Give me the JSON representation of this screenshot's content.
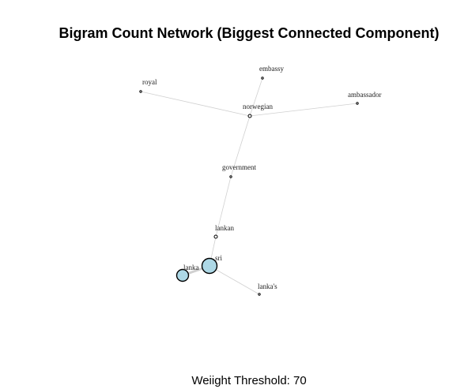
{
  "title": "Bigram Count Network (Biggest Connected Component)",
  "caption": "Weiight Threshold: 70",
  "style": {
    "edge_color": "#d0d0d0",
    "node_fill_large": "#add8e6",
    "node_fill_small": "#ffffff",
    "node_stroke": "#000000"
  },
  "nodes": [
    {
      "id": "embassy",
      "label": "embassy",
      "degree": 1
    },
    {
      "id": "royal",
      "label": "royal",
      "degree": 1
    },
    {
      "id": "ambassador",
      "label": "ambassador",
      "degree": 1
    },
    {
      "id": "norwegian",
      "label": "norwegian",
      "degree": 4
    },
    {
      "id": "government",
      "label": "government",
      "degree": 2
    },
    {
      "id": "lankan",
      "label": "lankan",
      "degree": 2
    },
    {
      "id": "sri",
      "label": "sri",
      "degree": 3
    },
    {
      "id": "lanka",
      "label": "lanka",
      "degree": 1
    },
    {
      "id": "lankas",
      "label": "lanka's",
      "degree": 1
    }
  ],
  "edges": [
    {
      "source": "royal",
      "target": "norwegian",
      "weight": 1
    },
    {
      "source": "embassy",
      "target": "norwegian",
      "weight": 1
    },
    {
      "source": "ambassador",
      "target": "norwegian",
      "weight": 1
    },
    {
      "source": "norwegian",
      "target": "government",
      "weight": 1
    },
    {
      "source": "government",
      "target": "lankan",
      "weight": 1
    },
    {
      "source": "lankan",
      "target": "sri",
      "weight": 1
    },
    {
      "source": "sri",
      "target": "lanka",
      "weight": 4
    },
    {
      "source": "sri",
      "target": "lankas",
      "weight": 1
    }
  ]
}
